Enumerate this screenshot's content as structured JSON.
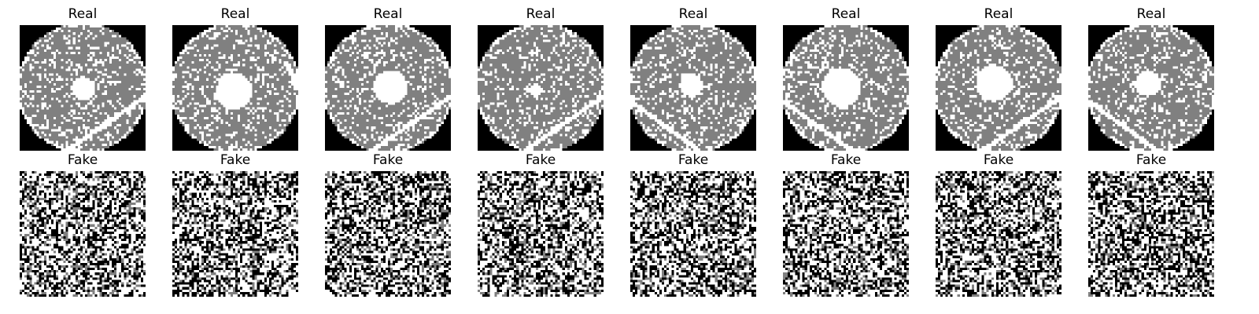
{
  "rows": [
    {
      "title": "Real",
      "kind": "wafer-map",
      "images": [
        {
          "defect": "center",
          "hole_fraction": 0.18,
          "scratch": "lower-right"
        },
        {
          "defect": "center",
          "hole_fraction": 0.28,
          "scratch": "right-edge"
        },
        {
          "defect": "center",
          "hole_fraction": 0.26,
          "scratch": "lower-right"
        },
        {
          "defect": "center",
          "hole_fraction": 0.1,
          "scratch": "lower-right"
        },
        {
          "defect": "center",
          "hole_fraction": 0.18,
          "scratch": "lower-left"
        },
        {
          "defect": "center",
          "hole_fraction": 0.3,
          "scratch": "lower-left"
        },
        {
          "defect": "center",
          "hole_fraction": 0.28,
          "scratch": "lower-right"
        },
        {
          "defect": "center",
          "hole_fraction": 0.2,
          "scratch": "lower-left"
        }
      ]
    },
    {
      "title": "Fake",
      "kind": "noise",
      "images": [
        {
          "pattern": "random-noise"
        },
        {
          "pattern": "random-noise"
        },
        {
          "pattern": "random-noise"
        },
        {
          "pattern": "random-noise"
        },
        {
          "pattern": "random-noise"
        },
        {
          "pattern": "random-noise"
        },
        {
          "pattern": "random-noise"
        },
        {
          "pattern": "random-noise"
        }
      ]
    }
  ],
  "colors": {
    "background": "#000000",
    "wafer": "#808080",
    "defect": "#ffffff",
    "noise_dark": "#000000",
    "noise_mid": "#808080",
    "noise_light": "#ffffff"
  }
}
